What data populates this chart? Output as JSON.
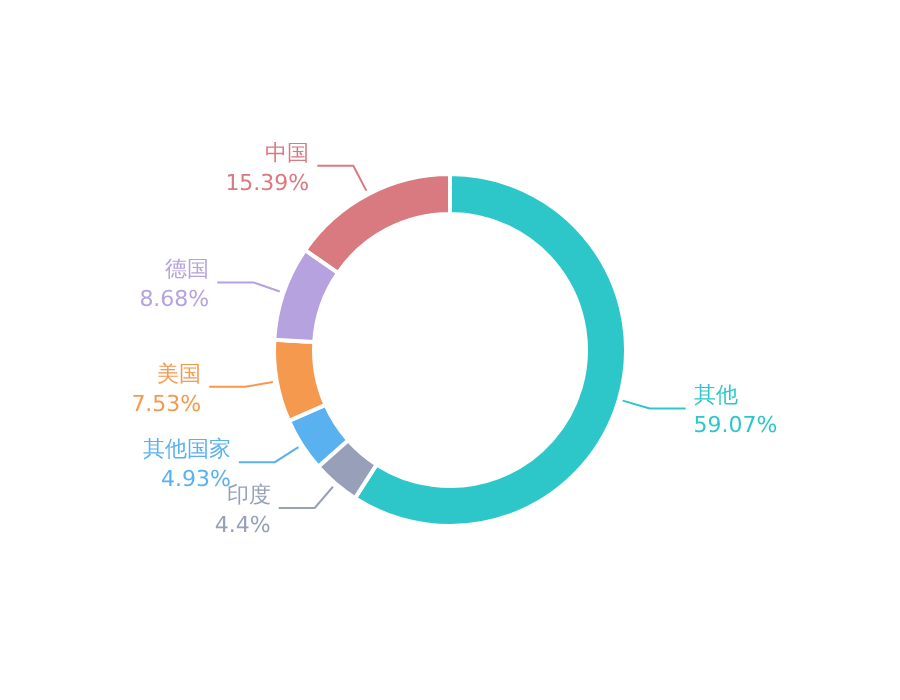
{
  "chart_data": {
    "type": "donut",
    "categories": [
      "其他",
      "印度",
      "其他国家",
      "美国",
      "德国",
      "中国"
    ],
    "values": [
      59.07,
      4.4,
      4.93,
      7.53,
      8.68,
      15.39
    ],
    "colors": [
      "#2ec7c9",
      "#97a0b8",
      "#5ab1ef",
      "#f5994e",
      "#b6a2de",
      "#d87a80"
    ],
    "value_labels": [
      "59.07%",
      "4.4%",
      "4.93%",
      "7.53%",
      "8.68%",
      "15.39%"
    ]
  }
}
